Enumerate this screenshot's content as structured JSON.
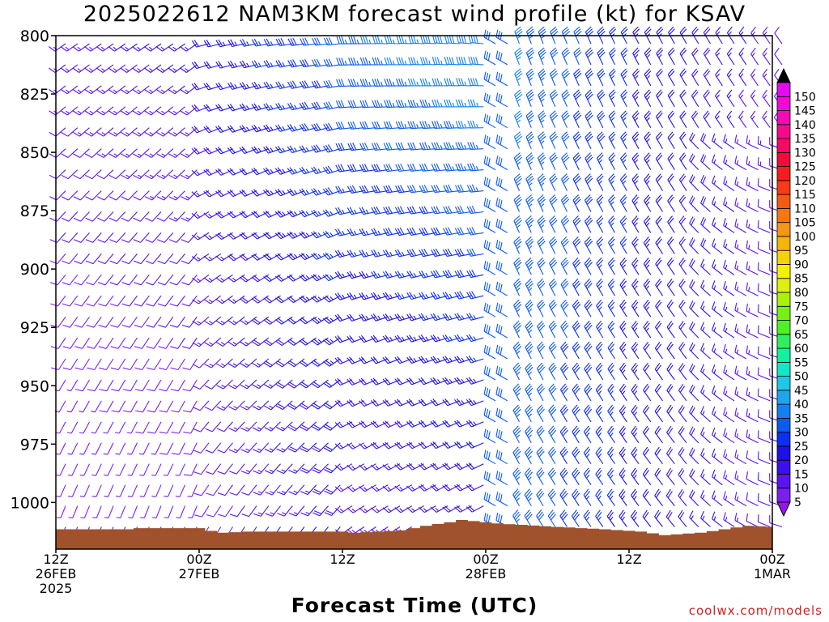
{
  "chart_data": {
    "type": "wind-barb-time-height",
    "title": "2025022612 NAM3KM forecast wind profile (kt) for KSAV",
    "xlabel": "Forecast Time (UTC)",
    "ylabel": "",
    "y_ticks": [
      800,
      825,
      850,
      875,
      900,
      925,
      950,
      975,
      1000
    ],
    "ylim": [
      800,
      1020
    ],
    "y_axis": "pressure hPa, inverted (800 at top)",
    "x_range_hours": [
      0,
      60
    ],
    "x_ticks": [
      {
        "hour": 0,
        "line1": "12Z",
        "line2": "26FEB",
        "line3": "2025"
      },
      {
        "hour": 12,
        "line1": "00Z",
        "line2": "27FEB",
        "line3": ""
      },
      {
        "hour": 24,
        "line1": "12Z",
        "line2": "",
        "line3": ""
      },
      {
        "hour": 36,
        "line1": "00Z",
        "line2": "28FEB",
        "line3": ""
      },
      {
        "hour": 48,
        "line1": "12Z",
        "line2": "",
        "line3": ""
      },
      {
        "hour": 60,
        "line1": "00Z",
        "line2": "1MAR",
        "line3": ""
      }
    ],
    "colorbar": {
      "units": "kt",
      "levels": [
        5,
        10,
        15,
        20,
        25,
        30,
        35,
        40,
        45,
        50,
        55,
        60,
        65,
        70,
        75,
        80,
        85,
        90,
        95,
        100,
        105,
        110,
        115,
        120,
        125,
        130,
        135,
        140,
        145,
        150
      ],
      "colors": [
        "#7a1ff0",
        "#5a14f0",
        "#3c0ff0",
        "#1e10e8",
        "#0c2ff0",
        "#0c5af0",
        "#1480f0",
        "#1ea5f0",
        "#1ec8e6",
        "#14e6c8",
        "#14f0a0",
        "#2ef060",
        "#50f028",
        "#78f014",
        "#aaf00a",
        "#dcf00a",
        "#f5f00a",
        "#f5d20a",
        "#f5b40a",
        "#f59614",
        "#f57814",
        "#f55a14",
        "#f53c14",
        "#f51e1e",
        "#f50a3c",
        "#f50a64",
        "#f50a8c",
        "#f50ab4",
        "#f00ad2",
        "#e60af0"
      ],
      "under_color": "#9614f0",
      "over_color": "#000000"
    },
    "surface_pressure_hpa": [
      {
        "hour": 0,
        "p": 1011.5
      },
      {
        "hour": 6,
        "p": 1011.5
      },
      {
        "hour": 7,
        "p": 1011
      },
      {
        "hour": 12,
        "p": 1011
      },
      {
        "hour": 13,
        "p": 1012.2
      },
      {
        "hour": 14,
        "p": 1013
      },
      {
        "hour": 16,
        "p": 1012.5
      },
      {
        "hour": 24,
        "p": 1012.5
      },
      {
        "hour": 25,
        "p": 1013
      },
      {
        "hour": 29,
        "p": 1012
      },
      {
        "hour": 31,
        "p": 1010
      },
      {
        "hour": 33,
        "p": 1008.5
      },
      {
        "hour": 34,
        "p": 1007.5
      },
      {
        "hour": 35,
        "p": 1008
      },
      {
        "hour": 37,
        "p": 1009
      },
      {
        "hour": 42,
        "p": 1010.5
      },
      {
        "hour": 46,
        "p": 1011.5
      },
      {
        "hour": 49,
        "p": 1012.5
      },
      {
        "hour": 51,
        "p": 1014
      },
      {
        "hour": 54,
        "p": 1013
      },
      {
        "hour": 56,
        "p": 1011.5
      },
      {
        "hour": 58,
        "p": 1010
      },
      {
        "hour": 60,
        "p": 1010.5
      }
    ],
    "wind_model": "Hourly barbs at 9 hPa spacing from 800 to surface. Direction/speed vary with forecast hour: light southwesterly early, strengthening westerly 25-40 kt jet near 850-800 hPa around 24-36 h, veering to north-northwesterly 20-40 kt after frontal passage (~37 h), weakening later."
  },
  "credit": "coolwx.com/models"
}
